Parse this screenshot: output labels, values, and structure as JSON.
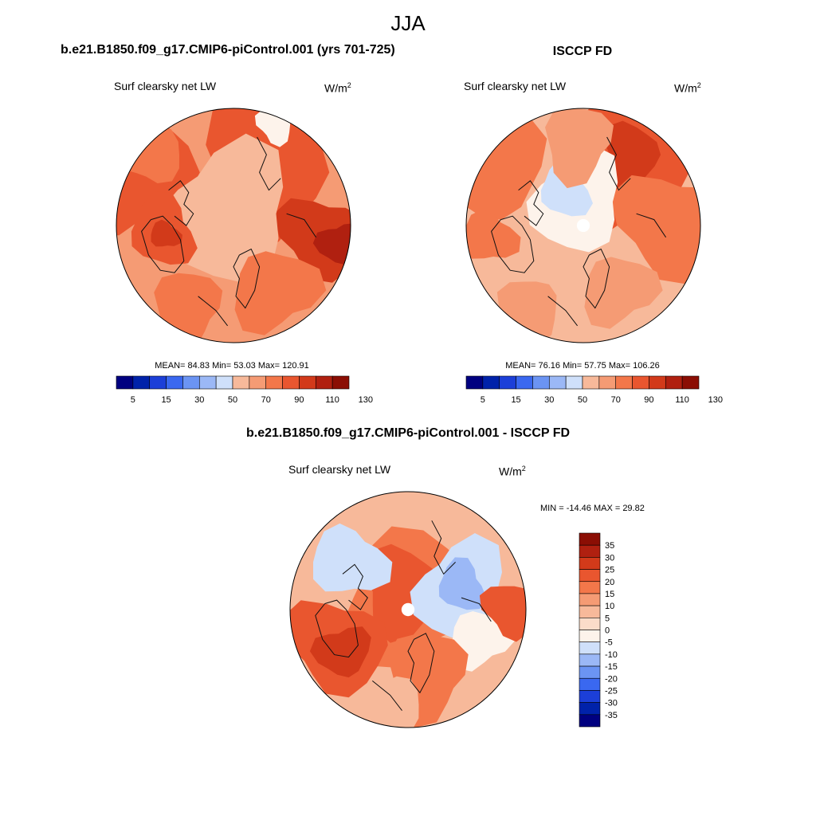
{
  "season": "JJA",
  "colors": {
    "cool": [
      "#000080",
      "#0022aa",
      "#1c3fd8",
      "#3a68f0",
      "#6b94f3",
      "#9bb8f6",
      "#cfe0fa"
    ],
    "neutral": "#fdf3eb",
    "warm": [
      "#fbdcc9",
      "#f7b99a",
      "#f59b74",
      "#f3774a",
      "#e9562f",
      "#d23a1a",
      "#b02010",
      "#8b0e04"
    ]
  },
  "panels": [
    {
      "title": "b.e21.B1850.f09_g17.CMIP6-piControl.001 (yrs 701-725)",
      "variable": "Surf clearsky net LW",
      "units": "W/m",
      "units_sup": "2",
      "stats": "MEAN=  84.83  Min=  53.03  Max= 120.91"
    },
    {
      "title": "ISCCP FD",
      "variable": "Surf clearsky net LW",
      "units": "W/m",
      "units_sup": "2",
      "stats": "MEAN=  76.16  Min=  57.75  Max= 106.26"
    },
    {
      "title": "b.e21.B1850.f09_g17.CMIP6-piControl.001 - ISCCP FD",
      "variable": "Surf clearsky net LW",
      "units": "W/m",
      "units_sup": "2",
      "stats": "MIN = -14.46 MAX =  29.82"
    }
  ],
  "chart_data": [
    {
      "type": "heatmap",
      "projection": "north polar stereographic",
      "title": "b.e21.B1850.f09_g17.CMIP6-piControl.001 (yrs 701-725)",
      "variable": "Surf clearsky net LW",
      "units": "W/m2",
      "mean": 84.83,
      "min": 53.03,
      "max": 120.91,
      "colorbar_levels": [
        5,
        10,
        15,
        20,
        30,
        40,
        50,
        60,
        70,
        80,
        90,
        100,
        110,
        120,
        130
      ],
      "colorbar_tick_labels": [
        "5",
        "15",
        "30",
        "50",
        "70",
        "90",
        "110",
        "130"
      ]
    },
    {
      "type": "heatmap",
      "projection": "north polar stereographic",
      "title": "ISCCP FD",
      "variable": "Surf clearsky net LW",
      "units": "W/m2",
      "mean": 76.16,
      "min": 57.75,
      "max": 106.26,
      "colorbar_levels": [
        5,
        10,
        15,
        20,
        30,
        40,
        50,
        60,
        70,
        80,
        90,
        100,
        110,
        120,
        130
      ],
      "colorbar_tick_labels": [
        "5",
        "15",
        "30",
        "50",
        "70",
        "90",
        "110",
        "130"
      ]
    },
    {
      "type": "heatmap",
      "projection": "north polar stereographic",
      "title": "b.e21.B1850.f09_g17.CMIP6-piControl.001 - ISCCP FD",
      "variable": "Surf clearsky net LW",
      "units": "W/m2",
      "min": -14.46,
      "max": 29.82,
      "colorbar_levels": [
        35,
        30,
        25,
        20,
        15,
        10,
        5,
        0,
        -5,
        -10,
        -15,
        -20,
        -25,
        -30,
        -35
      ],
      "colorbar_tick_labels": [
        "35",
        "30",
        "25",
        "20",
        "15",
        "10",
        "5",
        "0",
        "-5",
        "-10",
        "-15",
        "-20",
        "-25",
        "-30",
        "-35"
      ]
    }
  ]
}
